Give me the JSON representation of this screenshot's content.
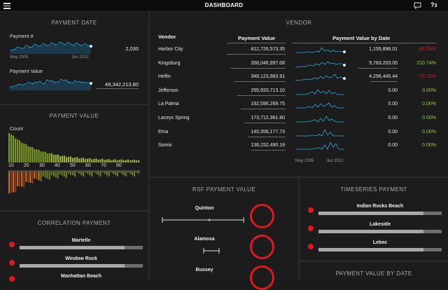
{
  "header": {
    "title": "DASHBOARD",
    "help": "?",
    "help_count": "3"
  },
  "payment_date": {
    "title": "PAYMENT DATE",
    "rows": [
      {
        "label": "Payment #",
        "value": "2,030"
      },
      {
        "label": "Payment Value",
        "value": "49,342,213.80"
      }
    ],
    "axis_start": "May 2005",
    "axis_end": "Jun 2012"
  },
  "payment_value": {
    "title": "PAYMENT VALUE",
    "count_label": "Count",
    "ticks": [
      "10",
      "20",
      "30",
      "40",
      "50",
      "60",
      "70",
      "80"
    ]
  },
  "correlation": {
    "title": "CORRELATION PAYMENT",
    "items": [
      {
        "label": "Martelle",
        "fill": 0.85
      },
      {
        "label": "Window Rock",
        "fill": 0.85
      },
      {
        "label": "Manhattan Beach",
        "fill": 0.85
      }
    ]
  },
  "vendor": {
    "title": "VENDOR",
    "col_vendor": "Vendor",
    "col_value": "Payment Value",
    "col_bydate": "Payment Value by Date",
    "axis_start": "May 2005",
    "axis_end": "Jun 2012",
    "rows": [
      {
        "name": "Harbor City",
        "value": "812,726,573.35",
        "latest": "1,155,898.01",
        "pct": "-95.29%",
        "pct_color": "#e0191f"
      },
      {
        "name": "Kingsburg",
        "value": "358,046,997.08",
        "latest": "9,783,203.05",
        "pct": "210.74%",
        "pct_color": "#8fd13c"
      },
      {
        "name": "Heflin",
        "value": "348,123,983.91",
        "latest": "4,296,445.44",
        "pct": "-75.72%",
        "pct_color": "#e0191f"
      },
      {
        "name": "Jefferson",
        "value": "255,933,713.10",
        "latest": "0.00",
        "pct": "0.00%",
        "pct_color": "#8fd13c"
      },
      {
        "name": "La Palma",
        "value": "192,596,269.75",
        "latest": "0.00",
        "pct": "0.00%",
        "pct_color": "#8fd13c"
      },
      {
        "name": "Laceys Spring",
        "value": "173,712,381.80",
        "latest": "0.00",
        "pct": "0.00%",
        "pct_color": "#8fd13c"
      },
      {
        "name": "Etna",
        "value": "140,356,177.73",
        "latest": "0.00",
        "pct": "0.00%",
        "pct_color": "#8fd13c"
      },
      {
        "name": "Somis",
        "value": "136,152,490.19",
        "latest": "0.00",
        "pct": "0.00%",
        "pct_color": "#8fd13c"
      }
    ]
  },
  "rsf": {
    "title": "RSF PAYMENT VALUE",
    "items": [
      {
        "label": "Quinton"
      },
      {
        "label": "Alamosa"
      },
      {
        "label": "Bussey"
      }
    ]
  },
  "timeseries": {
    "title": "TIMESERIES PAYMENT",
    "items": [
      {
        "label": "Indian Rocks Beach",
        "fill": 0.85
      },
      {
        "label": "Lakeside",
        "fill": 0.85
      },
      {
        "label": "Lebec",
        "fill": 0.85
      }
    ]
  },
  "value_by_date": {
    "title": "PAYMENT VALUE BY DATE"
  },
  "colors": {
    "accent": "#29a8e0",
    "alert": "#e0191f",
    "positive": "#8fd13c",
    "histogram": "#8aa52a"
  },
  "icons": {
    "menu": "menu-icon",
    "chat": "chat-icon",
    "help": "help-icon"
  }
}
